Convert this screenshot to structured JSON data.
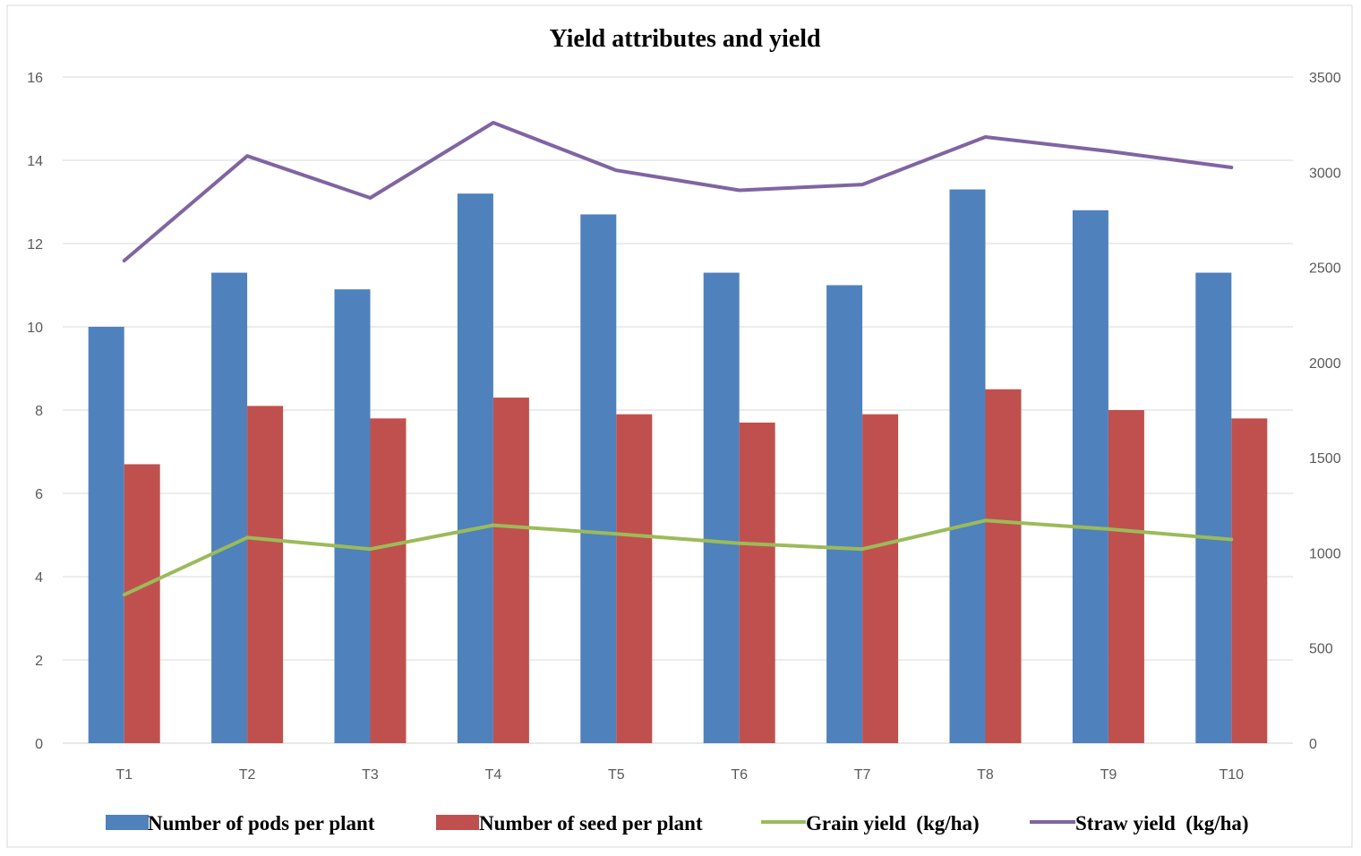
{
  "chart_data": {
    "type": "bar",
    "title": "Yield attributes and yield",
    "categories": [
      "T1",
      "T2",
      "T3",
      "T4",
      "T5",
      "T6",
      "T7",
      "T8",
      "T9",
      "T10"
    ],
    "y_left": {
      "min": 0,
      "max": 16,
      "ticks": [
        0,
        2,
        4,
        6,
        8,
        10,
        12,
        14,
        16
      ]
    },
    "y_right": {
      "min": 0,
      "max": 3500,
      "ticks": [
        0,
        500,
        1000,
        1500,
        2000,
        2500,
        3000,
        3500
      ]
    },
    "grid": true,
    "legend_position": "bottom",
    "series": [
      {
        "name": "Number of pods per plant",
        "kind": "bar",
        "axis": "left",
        "color": "#4F81BD",
        "values": [
          10.0,
          11.3,
          10.9,
          13.2,
          12.7,
          11.3,
          11.0,
          13.3,
          12.8,
          11.3
        ]
      },
      {
        "name": "Number of seed per plant",
        "kind": "bar",
        "axis": "left",
        "color": "#C0504D",
        "values": [
          6.7,
          8.1,
          7.8,
          8.3,
          7.9,
          7.7,
          7.9,
          8.5,
          8.0,
          7.8
        ]
      },
      {
        "name": "Grain yield  (kg/ha)",
        "kind": "line",
        "axis": "right",
        "color": "#9BBB59",
        "values": [
          780,
          1080,
          1020,
          1145,
          1100,
          1050,
          1020,
          1170,
          1125,
          1070
        ]
      },
      {
        "name": "Straw yield  (kg/ha)",
        "kind": "line",
        "axis": "right",
        "color": "#8064A2",
        "values": [
          2535,
          3085,
          2865,
          3260,
          3010,
          2905,
          2935,
          3185,
          3110,
          3025
        ]
      }
    ]
  }
}
